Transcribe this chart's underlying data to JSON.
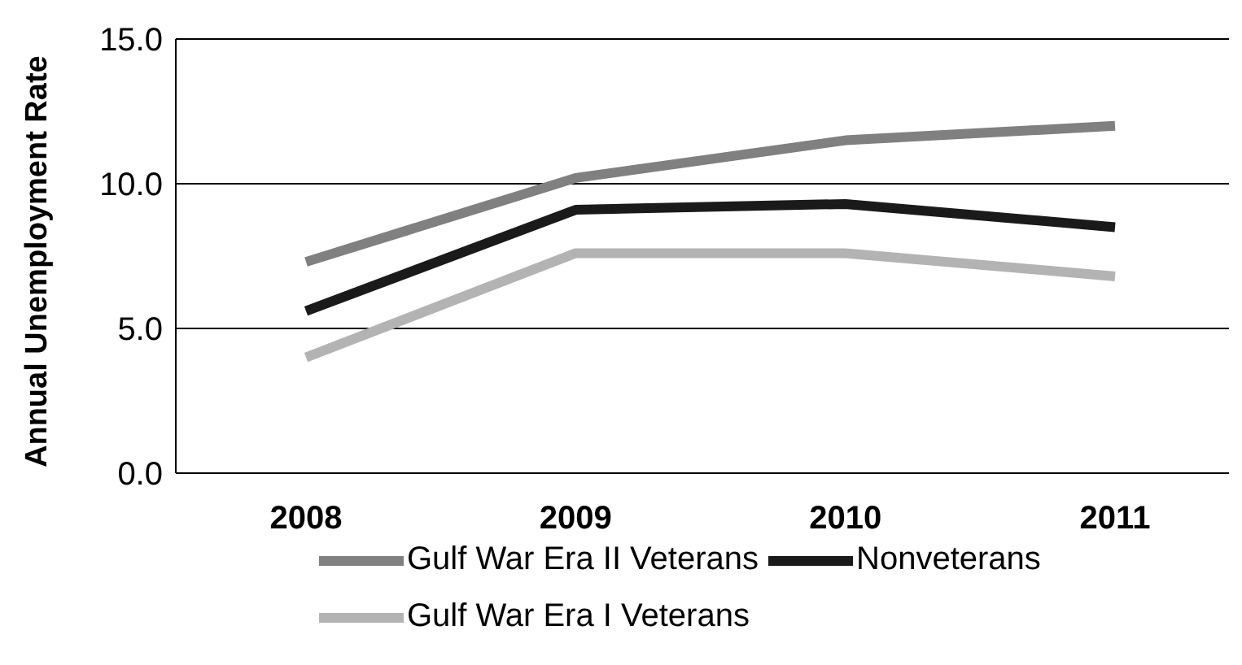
{
  "chart_data": {
    "type": "line",
    "ylabel": "Annual Unemployment Rate",
    "categories": [
      "2008",
      "2009",
      "2010",
      "2011"
    ],
    "series": [
      {
        "name": "Gulf War Era II Veterans",
        "color": "#808080",
        "values": [
          7.3,
          10.2,
          11.5,
          12.0
        ]
      },
      {
        "name": "Nonveterans",
        "color": "#1a1a1a",
        "values": [
          5.6,
          9.1,
          9.3,
          8.5
        ]
      },
      {
        "name": "Gulf War Era I Veterans",
        "color": "#b3b3b3",
        "values": [
          4.0,
          7.6,
          7.6,
          6.8
        ]
      }
    ],
    "ylim": [
      0,
      15
    ],
    "yticks": [
      {
        "value": 0,
        "label": "0.0"
      },
      {
        "value": 5,
        "label": "5.0"
      },
      {
        "value": 10,
        "label": "10.0"
      },
      {
        "value": 15,
        "label": "15.0"
      }
    ],
    "grid": "y",
    "legend": "bottom",
    "marker": "none",
    "line_style": "solid"
  }
}
